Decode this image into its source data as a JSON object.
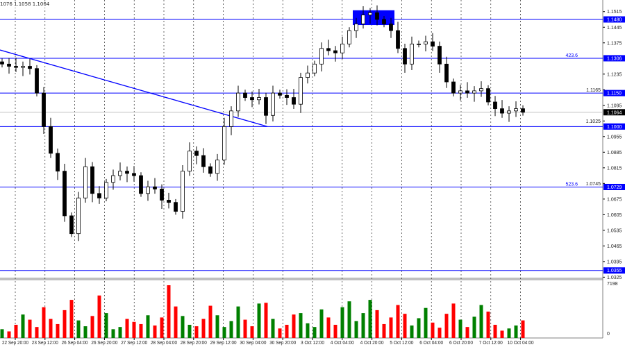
{
  "header": {
    "ohlc_text": "1076 1.1058 1.1064"
  },
  "chart_data": {
    "type": "candlestick",
    "timeframe_labels": [
      "22 Sep 20:00",
      "23 Sep 12:00",
      "26 Sep 04:00",
      "26 Sep 20:00",
      "27 Sep 12:00",
      "28 Sep 04:00",
      "28 Sep 20:00",
      "29 Sep 12:00",
      "30 Sep 04:00",
      "30 Sep 20:00",
      "3 Oct 12:00",
      "4 Oct 04:00",
      "4 Oct 20:00",
      "5 Oct 12:00",
      "6 Oct 04:00",
      "6 Oct 20:00",
      "7 Oct 12:00",
      "10 Oct 04:00"
    ],
    "y_ticks": [
      "1.1515",
      "1.1445",
      "1.1375",
      "1.1235",
      "1.1165",
      "1.1095",
      "1.1025",
      "1.0955",
      "1.0885",
      "1.0815",
      "1.0745",
      "1.0675",
      "1.0605",
      "1.0535",
      "1.0465",
      "1.0395",
      "1.0325"
    ],
    "ylim": [
      1.03,
      1.157
    ],
    "close": [
      1.128,
      1.127,
      1.1265,
      1.127,
      1.126,
      1.115,
      1.1,
      1.088,
      1.08,
      1.06,
      1.052,
      1.068,
      1.082,
      1.07,
      1.068,
      1.075,
      1.078,
      1.08,
      1.079,
      1.078,
      1.07,
      1.073,
      1.072,
      1.067,
      1.066,
      1.062,
      1.08,
      1.089,
      1.087,
      1.082,
      1.079,
      1.085,
      1.1,
      1.107,
      1.115,
      1.113,
      1.112,
      1.113,
      1.105,
      1.115,
      1.114,
      1.113,
      1.11,
      1.122,
      1.124,
      1.128,
      1.135,
      1.134,
      1.133,
      1.137,
      1.143,
      1.146,
      1.15,
      1.151,
      1.148,
      1.146,
      1.143,
      1.135,
      1.128,
      1.137,
      1.137,
      1.138,
      1.136,
      1.128,
      1.12,
      1.115,
      1.116,
      1.115,
      1.116,
      1.117,
      1.111,
      1.108,
      1.106,
      1.107,
      1.108,
      1.1064
    ],
    "volume": [
      1200,
      900,
      1800,
      3200,
      2500,
      1500,
      4200,
      2600,
      1900,
      3800,
      5200,
      2400,
      1600,
      3000,
      5800,
      3400,
      1200,
      1500,
      2600,
      2200,
      1900,
      3100,
      1700,
      2800,
      7198,
      4300,
      3000,
      1800,
      1600,
      2600,
      4400,
      3100,
      1500,
      2300,
      4300,
      2500,
      1600,
      4700,
      4800,
      2600,
      1300,
      1800,
      3200,
      3400,
      2000,
      1500,
      3900,
      2800,
      1800,
      4200,
      5000,
      2300,
      3400,
      5200,
      3800,
      1900,
      2800,
      4500,
      3300,
      1700,
      2700,
      4100,
      2100,
      1400,
      3300,
      4700,
      2500,
      1500,
      2900,
      4500,
      3600,
      1800,
      1000,
      1300,
      1700,
      2400
    ],
    "volume_max_label": "7198",
    "volume_min_label": "0",
    "levels": [
      {
        "price": 1.148,
        "label": "1.1480"
      },
      {
        "price": 1.1306,
        "label": "1.1306",
        "fib": "423.6"
      },
      {
        "price": 1.115,
        "label": "1.1150"
      },
      {
        "price": 1.1,
        "label": "1.1000"
      },
      {
        "price": 1.0729,
        "label": "1.0729",
        "fib": "523.6"
      },
      {
        "price": 1.0355,
        "label": "1.0355"
      }
    ],
    "current_price": {
      "price": 1.1064,
      "label": "1.1064"
    },
    "trendline": {
      "from_price": 1.1343,
      "to_price": 1.1,
      "from_index": 0,
      "to_index": 38
    },
    "highlight_zone": {
      "from_index": 51,
      "to_index": 56,
      "top_price": 1.1521,
      "bottom_price": 1.1455
    },
    "colors": {
      "up": "#008000",
      "down": "#ff0000",
      "level": "#0000ff",
      "zone": "#0000ff",
      "label_bg": "#0000ff",
      "current_bg": "#000000"
    }
  }
}
